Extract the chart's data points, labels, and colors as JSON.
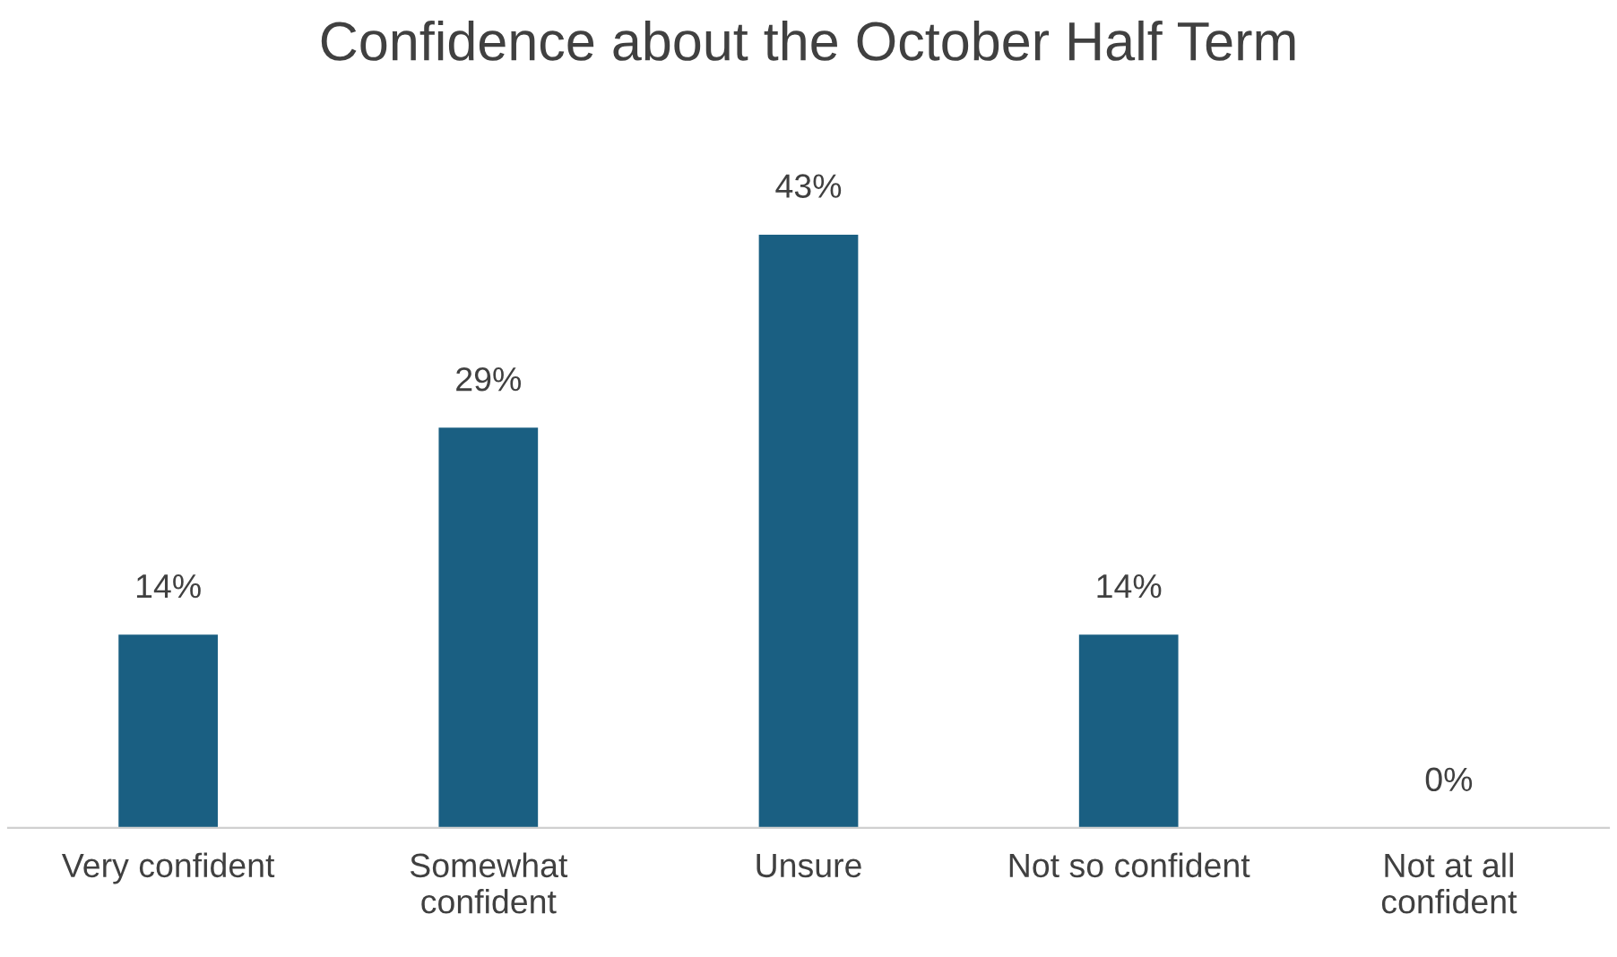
{
  "chart_data": {
    "type": "bar",
    "title": "Confidence about the October Half Term",
    "categories": [
      "Very confident",
      "Somewhat\nconfident",
      "Unsure",
      "Not so confident",
      "Not at all\nconfident"
    ],
    "values": [
      14,
      29,
      43,
      14,
      0
    ],
    "value_labels": [
      "14%",
      "29%",
      "43%",
      "14%",
      "0%"
    ],
    "color": "#1a5f82"
  }
}
